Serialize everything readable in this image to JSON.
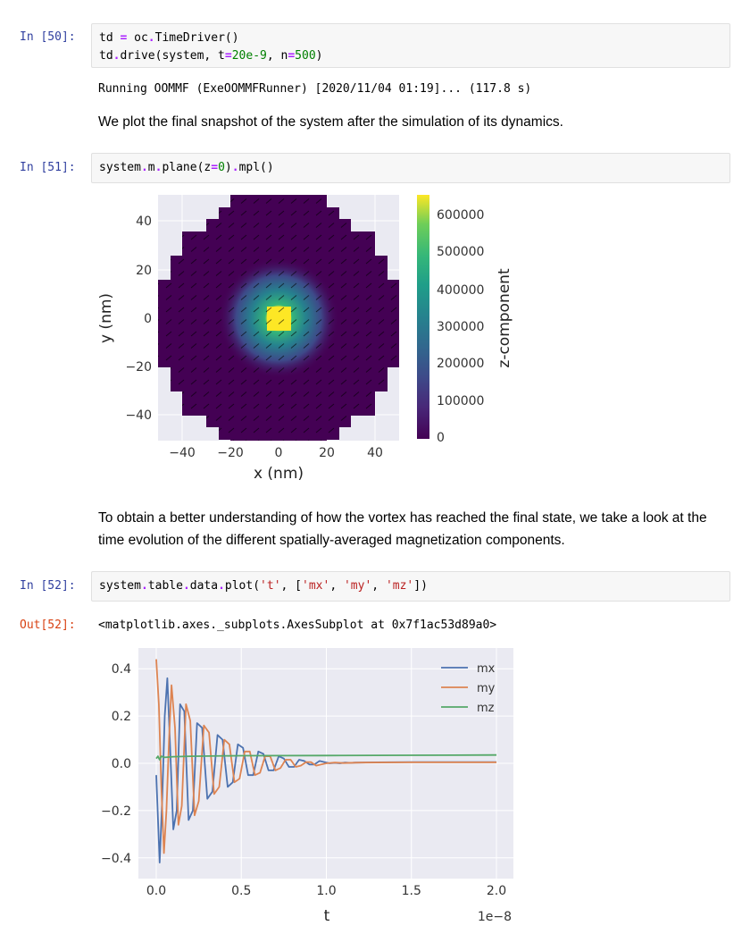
{
  "cells": {
    "c50": {
      "prompt": "In [50]:",
      "line1": {
        "a": "td ",
        "op": "=",
        "b": " oc",
        "dot": ".",
        "c": "TimeDriver()"
      },
      "line2": {
        "a": "td",
        "dot": ".",
        "b": "drive(system, t",
        "eq1": "=",
        "n1": "20e-9",
        "c": ", n",
        "eq2": "=",
        "n2": "500",
        "d": ")"
      },
      "output": "Running OOMMF (ExeOOMMFRunner) [2020/11/04 01:19]... (117.8 s)"
    },
    "md1": "We plot the final snapshot of the system after the simulation of its dynamics.",
    "c51": {
      "prompt": "In [51]:",
      "line": {
        "a": "system",
        "d1": ".",
        "b": "m",
        "d2": ".",
        "c": "plane(z",
        "eq": "=",
        "n": "0",
        "d": ")",
        "d3": ".",
        "e": "mpl()"
      }
    },
    "md2": "To obtain a better understanding of how the vortex has reached the final state, we take a look at the time evolution of the different spatially-averaged magnetization components.",
    "c52": {
      "prompt": "In [52]:",
      "line": {
        "a": "system",
        "d1": ".",
        "b": "table",
        "d2": ".",
        "c": "data",
        "d3": ".",
        "e": "plot(",
        "s1": "'t'",
        "f": ", [",
        "s2": "'mx'",
        "g": ", ",
        "s3": "'my'",
        "h": ", ",
        "s4": "'mz'",
        "i": "])"
      },
      "out_prompt": "Out[52]:",
      "output": "<matplotlib.axes._subplots.AxesSubplot at 0x7f1ac53d89a0>"
    }
  },
  "plot1": {
    "xlabel": "x (nm)",
    "ylabel": "y (nm)",
    "xticks": [
      "−40",
      "−20",
      "0",
      "20",
      "40"
    ],
    "yticks": [
      "40",
      "20",
      "0",
      "−20",
      "−40"
    ],
    "cbar_label": "z-component",
    "cbar_ticks": [
      "600000",
      "500000",
      "400000",
      "300000",
      "200000",
      "100000",
      "0"
    ],
    "colors": {
      "low": "#440154",
      "high": "#fde725"
    }
  },
  "chart_data": {
    "type": "line",
    "xlabel": "t",
    "ylabel": "",
    "x_offset_label": "1e−8",
    "xlim": [
      0.0,
      2.0
    ],
    "ylim": [
      -0.45,
      0.45
    ],
    "xticks": [
      "0.0",
      "0.5",
      "1.0",
      "1.5",
      "2.0"
    ],
    "yticks": [
      "0.4",
      "0.2",
      "0.0",
      "−0.2",
      "−0.4"
    ],
    "legend_position": "top-right",
    "grid": true,
    "series": [
      {
        "name": "mx",
        "color": "#4c72b0",
        "x": [
          0.0,
          0.02,
          0.035,
          0.05,
          0.065,
          0.08,
          0.1,
          0.12,
          0.14,
          0.165,
          0.19,
          0.215,
          0.24,
          0.27,
          0.3,
          0.33,
          0.36,
          0.39,
          0.42,
          0.45,
          0.48,
          0.51,
          0.54,
          0.57,
          0.6,
          0.63,
          0.66,
          0.69,
          0.72,
          0.75,
          0.78,
          0.81,
          0.84,
          0.87,
          0.9,
          0.93,
          0.96,
          0.99,
          1.02,
          1.05,
          1.08,
          1.11,
          1.14,
          1.17,
          1.2,
          1.3,
          1.5,
          2.0
        ],
        "y": [
          -0.05,
          -0.42,
          -0.15,
          0.2,
          0.36,
          0.1,
          -0.28,
          -0.2,
          0.25,
          0.22,
          -0.24,
          -0.2,
          0.17,
          0.15,
          -0.15,
          -0.12,
          0.12,
          0.1,
          -0.1,
          -0.08,
          0.08,
          0.065,
          -0.05,
          -0.05,
          0.05,
          0.04,
          -0.03,
          -0.03,
          0.03,
          0.02,
          -0.015,
          -0.015,
          0.015,
          0.01,
          -0.005,
          -0.005,
          0.01,
          0.005,
          0.0,
          0.002,
          0.0,
          0.003,
          0.002,
          0.003,
          0.003,
          0.004,
          0.005,
          0.005
        ]
      },
      {
        "name": "my",
        "color": "#dd8452",
        "x": [
          0.0,
          0.015,
          0.03,
          0.045,
          0.06,
          0.075,
          0.09,
          0.11,
          0.13,
          0.15,
          0.175,
          0.2,
          0.225,
          0.25,
          0.28,
          0.31,
          0.34,
          0.37,
          0.4,
          0.43,
          0.46,
          0.49,
          0.52,
          0.55,
          0.58,
          0.61,
          0.64,
          0.67,
          0.7,
          0.73,
          0.76,
          0.79,
          0.82,
          0.85,
          0.88,
          0.91,
          0.94,
          0.97,
          1.0,
          1.05,
          1.1,
          1.2,
          1.5,
          2.0
        ],
        "y": [
          0.44,
          0.25,
          -0.1,
          -0.38,
          -0.2,
          0.1,
          0.33,
          0.15,
          -0.26,
          -0.18,
          0.25,
          0.18,
          -0.22,
          -0.16,
          0.16,
          0.13,
          -0.13,
          -0.1,
          0.1,
          0.08,
          -0.08,
          -0.065,
          0.05,
          0.05,
          -0.05,
          -0.04,
          0.03,
          0.03,
          -0.03,
          -0.02,
          0.015,
          0.015,
          -0.015,
          -0.01,
          0.005,
          0.005,
          -0.01,
          -0.005,
          0.0,
          0.003,
          0.001,
          0.003,
          0.004,
          0.004
        ]
      },
      {
        "name": "mz",
        "color": "#55a868",
        "x": [
          0.0,
          0.01,
          0.02,
          0.03,
          0.05,
          0.1,
          0.2,
          0.5,
          1.0,
          1.5,
          2.0
        ],
        "y": [
          0.02,
          0.03,
          0.015,
          0.03,
          0.025,
          0.028,
          0.03,
          0.032,
          0.033,
          0.034,
          0.035
        ]
      }
    ]
  }
}
